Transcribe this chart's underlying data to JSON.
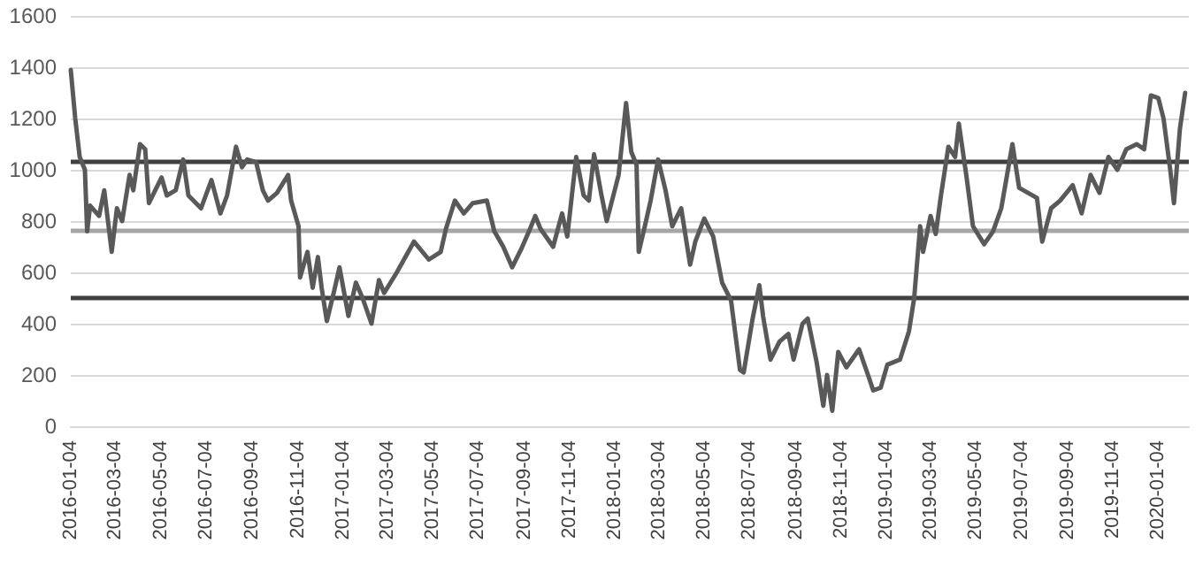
{
  "chart_data": {
    "type": "line",
    "x": [
      "2016-01-04",
      "2016-01-10",
      "2016-01-16",
      "2016-01-23",
      "2016-01-26",
      "2016-01-30",
      "2016-02-11",
      "2016-02-18",
      "2016-02-28",
      "2016-03-06",
      "2016-03-13",
      "2016-03-23",
      "2016-03-28",
      "2016-04-06",
      "2016-04-13",
      "2016-04-18",
      "2016-05-05",
      "2016-05-12",
      "2016-05-24",
      "2016-06-03",
      "2016-06-10",
      "2016-06-27",
      "2016-07-11",
      "2016-07-23",
      "2016-08-01",
      "2016-08-13",
      "2016-08-21",
      "2016-08-28",
      "2016-09-09",
      "2016-09-18",
      "2016-09-25",
      "2016-10-07",
      "2016-10-22",
      "2016-10-26",
      "2016-11-05",
      "2016-11-07",
      "2016-11-17",
      "2016-11-24",
      "2016-12-01",
      "2016-12-06",
      "2016-12-13",
      "2016-12-23",
      "2016-12-30",
      "2017-01-11",
      "2017-01-21",
      "2017-01-30",
      "2017-02-11",
      "2017-02-21",
      "2017-02-28",
      "2017-03-17",
      "2017-04-09",
      "2017-04-29",
      "2017-05-15",
      "2017-05-22",
      "2017-06-03",
      "2017-06-15",
      "2017-06-27",
      "2017-07-16",
      "2017-07-26",
      "2017-08-07",
      "2017-08-19",
      "2017-08-31",
      "2017-09-12",
      "2017-09-19",
      "2017-09-26",
      "2017-10-13",
      "2017-10-25",
      "2017-11-01",
      "2017-11-13",
      "2017-11-23",
      "2017-11-30",
      "2017-12-07",
      "2017-12-17",
      "2017-12-24",
      "2018-01-09",
      "2018-01-19",
      "2018-01-26",
      "2018-02-02",
      "2018-02-05",
      "2018-02-14",
      "2018-02-21",
      "2018-03-03",
      "2018-03-13",
      "2018-03-22",
      "2018-04-03",
      "2018-04-15",
      "2018-04-22",
      "2018-05-04",
      "2018-05-16",
      "2018-05-28",
      "2018-06-09",
      "2018-06-21",
      "2018-06-26",
      "2018-07-08",
      "2018-07-17",
      "2018-07-22",
      "2018-08-01",
      "2018-08-13",
      "2018-08-25",
      "2018-09-01",
      "2018-09-13",
      "2018-09-20",
      "2018-10-02",
      "2018-10-11",
      "2018-10-16",
      "2018-10-23",
      "2018-10-31",
      "2018-11-11",
      "2018-11-28",
      "2018-12-10",
      "2018-12-17",
      "2018-12-27",
      "2019-01-05",
      "2019-01-22",
      "2019-02-03",
      "2019-02-10",
      "2019-02-18",
      "2019-02-22",
      "2019-03-04",
      "2019-03-11",
      "2019-03-18",
      "2019-03-28",
      "2019-04-06",
      "2019-04-11",
      "2019-04-21",
      "2019-04-30",
      "2019-05-15",
      "2019-05-27",
      "2019-06-07",
      "2019-06-22",
      "2019-07-01",
      "2019-07-13",
      "2019-07-25",
      "2019-08-01",
      "2019-08-13",
      "2019-08-25",
      "2019-09-11",
      "2019-09-23",
      "2019-10-05",
      "2019-10-17",
      "2019-10-29",
      "2019-11-10",
      "2019-11-22",
      "2019-12-06",
      "2019-12-16",
      "2019-12-25",
      "2020-01-04",
      "2020-01-11",
      "2020-01-20",
      "2020-01-25",
      "2020-02-02",
      "2020-02-09"
    ],
    "series": [
      {
        "color": "#595959",
        "values": [
          1390,
          1200,
          1050,
          1000,
          760,
          860,
          820,
          920,
          680,
          850,
          800,
          980,
          920,
          1100,
          1080,
          870,
          970,
          900,
          920,
          1040,
          900,
          850,
          960,
          830,
          900,
          1090,
          1010,
          1040,
          1030,
          920,
          880,
          910,
          980,
          880,
          780,
          580,
          680,
          540,
          660,
          540,
          410,
          530,
          620,
          430,
          560,
          500,
          400,
          570,
          520,
          600,
          720,
          650,
          680,
          770,
          880,
          830,
          870,
          880,
          760,
          700,
          620,
          690,
          770,
          820,
          770,
          700,
          830,
          740,
          1050,
          900,
          880,
          1060,
          900,
          800,
          980,
          1260,
          1070,
          1020,
          680,
          790,
          880,
          1040,
          920,
          780,
          850,
          630,
          720,
          810,
          740,
          560,
          490,
          220,
          210,
          420,
          550,
          430,
          260,
          330,
          360,
          260,
          400,
          420,
          250,
          80,
          200,
          60,
          290,
          230,
          300,
          200,
          140,
          150,
          240,
          260,
          370,
          500,
          780,
          680,
          820,
          750,
          900,
          1090,
          1050,
          1180,
          980,
          780,
          710,
          760,
          850,
          1100,
          930,
          910,
          890,
          720,
          850,
          880,
          940,
          830,
          980,
          910,
          1050,
          1000,
          1080,
          1100,
          1080,
          1290,
          1280,
          1200,
          1000,
          870,
          1160,
          1300
        ]
      }
    ],
    "xlim": [
      "2016-01-04",
      "2020-02-14"
    ],
    "xticks": [
      "2016-01-04",
      "2016-03-04",
      "2016-05-04",
      "2016-07-04",
      "2016-09-04",
      "2016-11-04",
      "2017-01-04",
      "2017-03-04",
      "2017-05-04",
      "2017-07-04",
      "2017-09-04",
      "2017-11-04",
      "2018-01-04",
      "2018-03-04",
      "2018-05-04",
      "2018-07-04",
      "2018-09-04",
      "2018-11-04",
      "2019-01-04",
      "2019-03-04",
      "2019-05-04",
      "2019-07-04",
      "2019-09-04",
      "2019-11-04",
      "2020-01-04"
    ],
    "ylim": [
      0,
      1600
    ],
    "yticks": [
      0,
      200,
      400,
      600,
      800,
      1000,
      1200,
      1400,
      1600
    ],
    "ref_lines": [
      {
        "axis": "y",
        "value": 1030,
        "color": "#404040"
      },
      {
        "axis": "y",
        "value": 765,
        "color": "#a6a6a6"
      },
      {
        "axis": "y",
        "value": 500,
        "color": "#404040"
      }
    ],
    "grid": "y",
    "marker": "none"
  }
}
